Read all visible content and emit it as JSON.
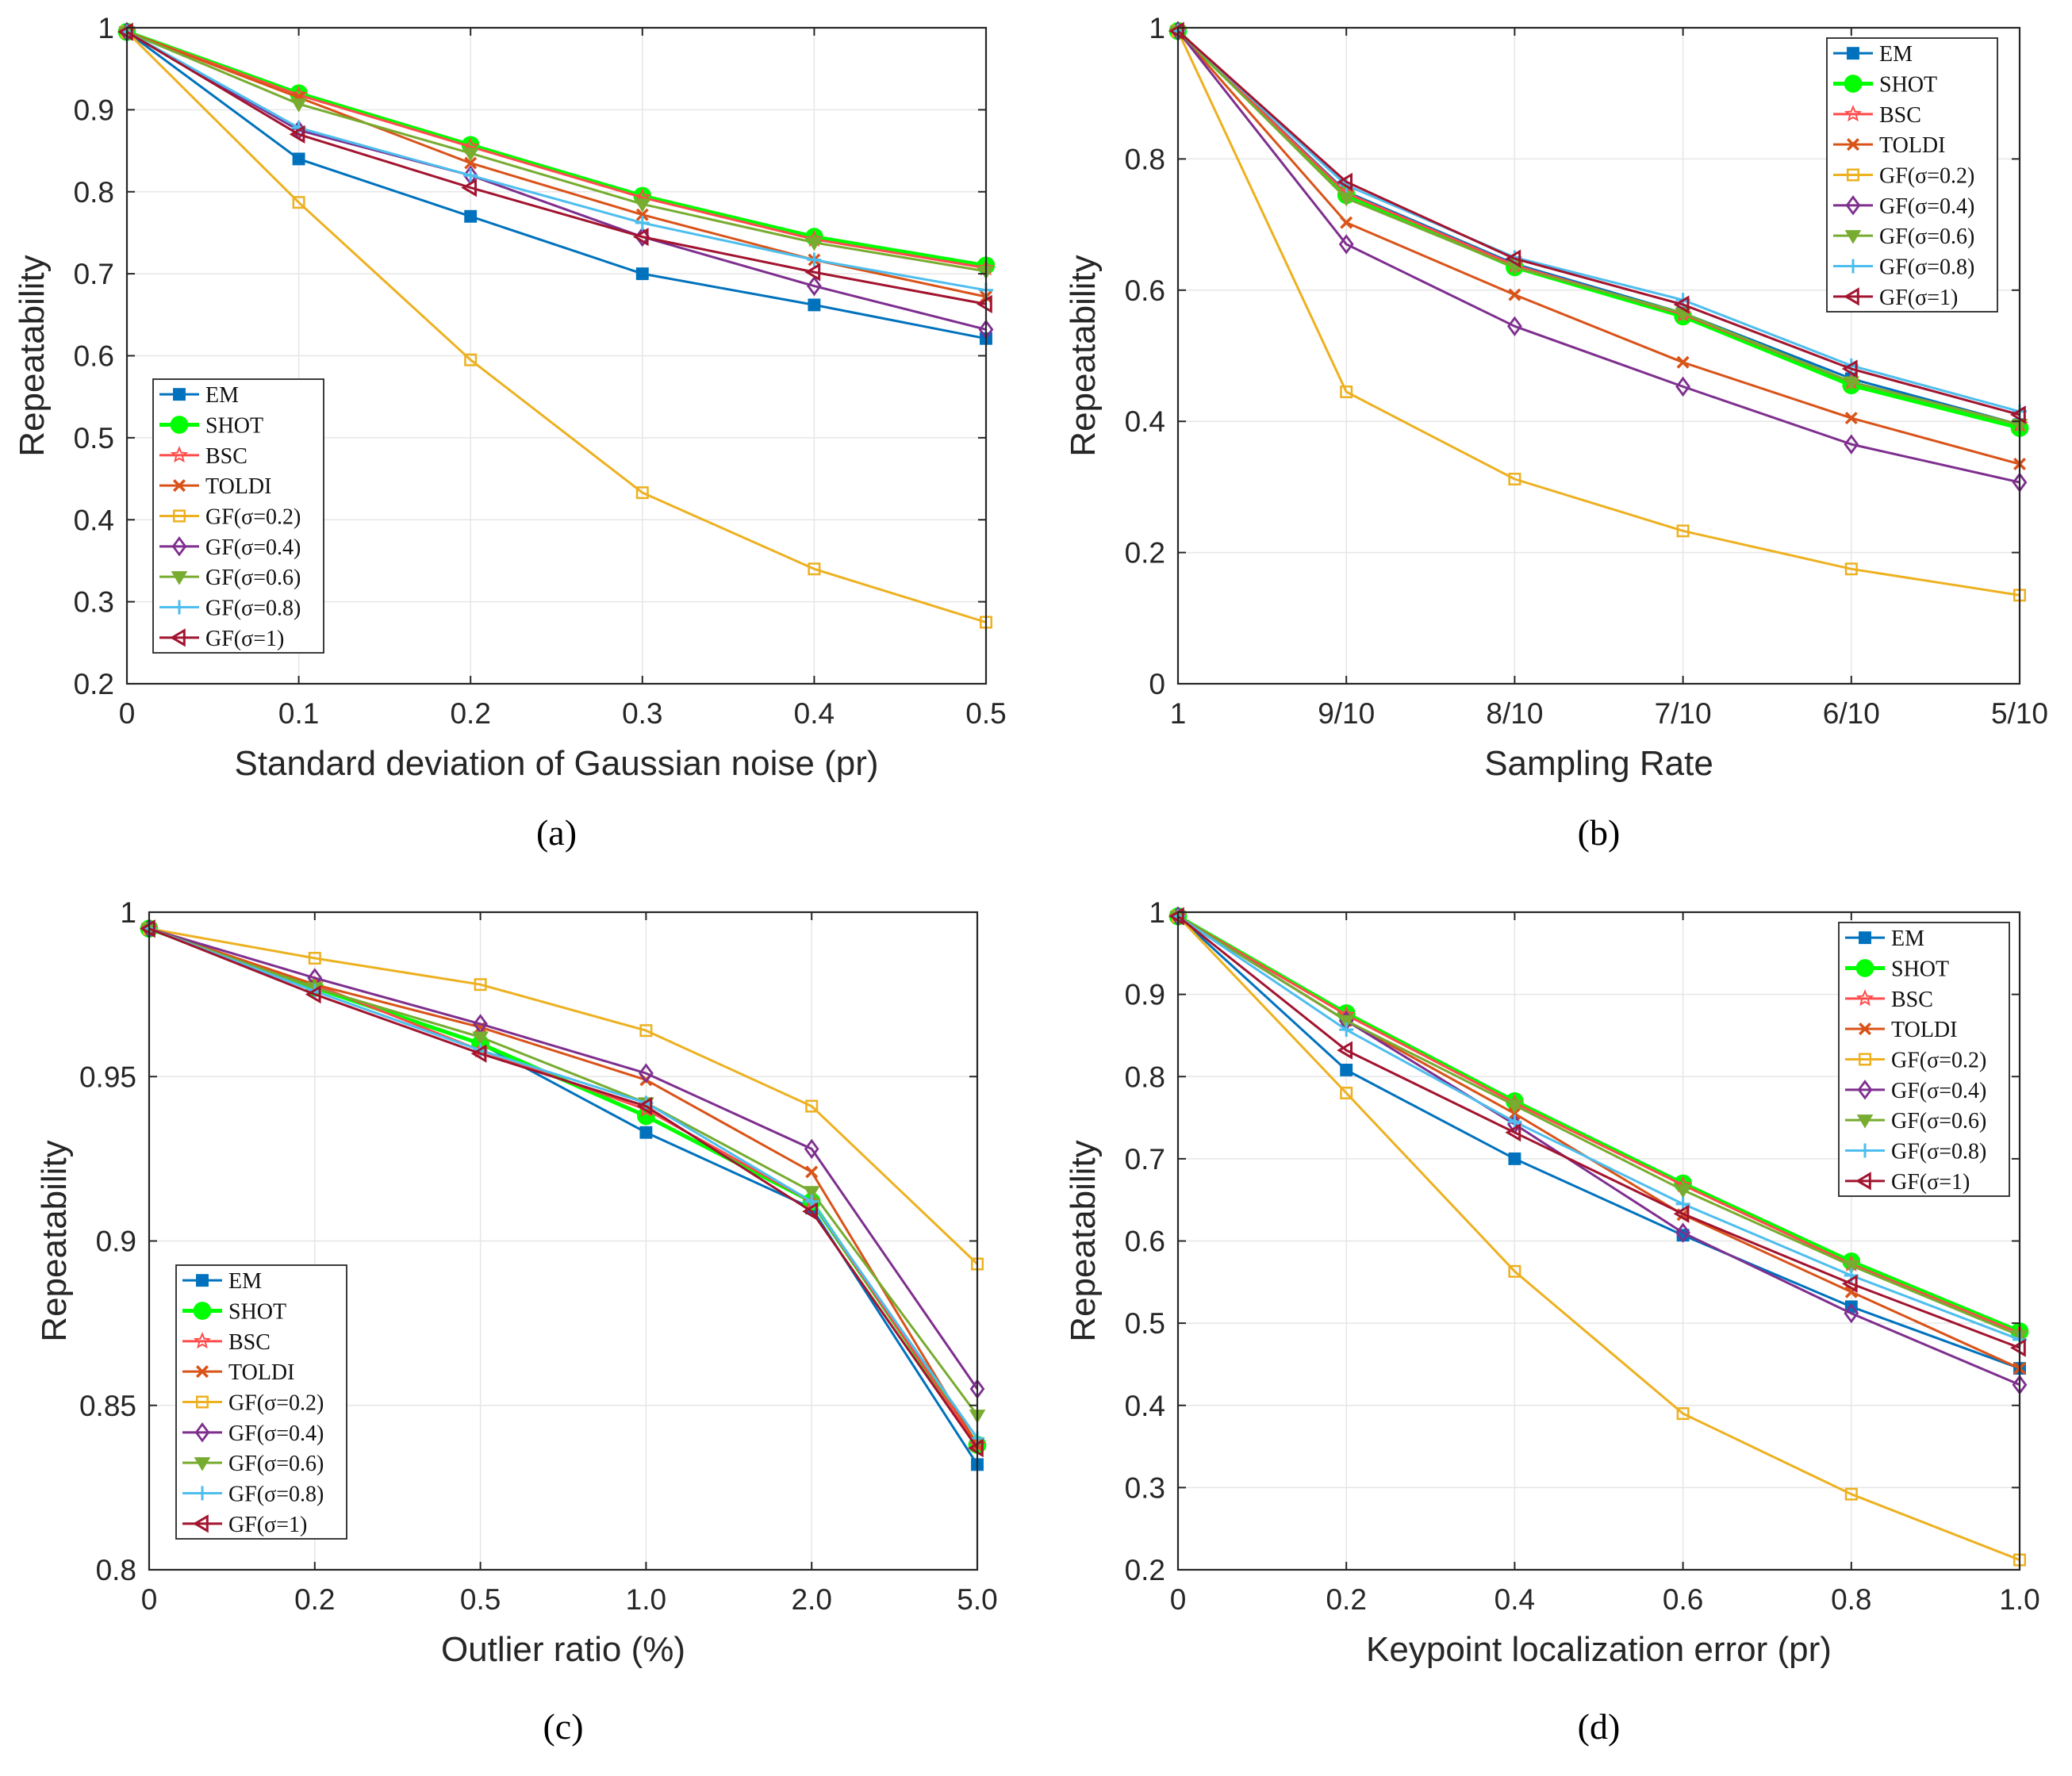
{
  "legend_labels": [
    "EM",
    "SHOT",
    "BSC",
    "TOLDI",
    "GF(σ=0.2)",
    "GF(σ=0.4)",
    "GF(σ=0.6)",
    "GF(σ=0.8)",
    "GF(σ=1)"
  ],
  "series_style": {
    "EM": {
      "color": "#0072BD",
      "marker": "square"
    },
    "SHOT": {
      "color": "#00FF00",
      "marker": "circle"
    },
    "BSC": {
      "color": "#FF4B4B",
      "marker": "star"
    },
    "TOLDI": {
      "color": "#D95319",
      "marker": "x"
    },
    "GF(σ=0.2)": {
      "color": "#EDB120",
      "marker": "square-open"
    },
    "GF(σ=0.4)": {
      "color": "#7E2F8E",
      "marker": "diamond"
    },
    "GF(σ=0.6)": {
      "color": "#77AC30",
      "marker": "triangle-down"
    },
    "GF(σ=0.8)": {
      "color": "#4DBEEE",
      "marker": "plus"
    },
    "GF(σ=1)": {
      "color": "#A2142F",
      "marker": "triangle-left"
    }
  },
  "chart_data": [
    {
      "type": "line",
      "caption": "(a)",
      "xlabel": "Standard deviation of Gaussian noise (pr)",
      "ylabel": "Repeatability",
      "categories": [
        "0",
        "0.1",
        "0.2",
        "0.3",
        "0.4",
        "0.5"
      ],
      "yticks": [
        "0.2",
        "0.3",
        "0.4",
        "0.5",
        "0.6",
        "0.7",
        "0.8",
        "0.9",
        "1"
      ],
      "ylim": [
        0.2,
        1.0
      ],
      "legend_position": "bottom-left",
      "series": [
        {
          "name": "EM",
          "values": [
            0.995,
            0.84,
            0.77,
            0.7,
            0.662,
            0.621
          ]
        },
        {
          "name": "SHOT",
          "values": [
            0.995,
            0.92,
            0.857,
            0.795,
            0.745,
            0.71
          ]
        },
        {
          "name": "BSC",
          "values": [
            0.995,
            0.918,
            0.855,
            0.793,
            0.742,
            0.707
          ]
        },
        {
          "name": "TOLDI",
          "values": [
            0.995,
            0.915,
            0.835,
            0.772,
            0.717,
            0.672
          ]
        },
        {
          "name": "GF(σ=0.2)",
          "values": [
            0.995,
            0.787,
            0.595,
            0.433,
            0.34,
            0.275
          ]
        },
        {
          "name": "GF(σ=0.4)",
          "values": [
            0.995,
            0.875,
            0.82,
            0.745,
            0.685,
            0.632
          ]
        },
        {
          "name": "GF(σ=0.6)",
          "values": [
            0.995,
            0.907,
            0.847,
            0.785,
            0.738,
            0.703
          ]
        },
        {
          "name": "GF(σ=0.8)",
          "values": [
            0.995,
            0.878,
            0.82,
            0.762,
            0.717,
            0.68
          ]
        },
        {
          "name": "GF(σ=1)",
          "values": [
            0.995,
            0.87,
            0.805,
            0.745,
            0.702,
            0.663
          ]
        }
      ]
    },
    {
      "type": "line",
      "caption": "(b)",
      "xlabel": "Sampling Rate",
      "ylabel": "Repeatability",
      "categories": [
        "1",
        "9/10",
        "8/10",
        "7/10",
        "6/10",
        "5/10"
      ],
      "yticks": [
        "0",
        "0.2",
        "0.4",
        "0.6",
        "0.8",
        "1"
      ],
      "ylim": [
        0,
        1.0
      ],
      "legend_position": "top-right",
      "series": [
        {
          "name": "EM",
          "values": [
            0.995,
            0.75,
            0.64,
            0.565,
            0.465,
            0.395
          ]
        },
        {
          "name": "SHOT",
          "values": [
            0.995,
            0.745,
            0.635,
            0.56,
            0.455,
            0.39
          ]
        },
        {
          "name": "BSC",
          "values": [
            0.995,
            0.748,
            0.638,
            0.563,
            0.46,
            0.395
          ]
        },
        {
          "name": "TOLDI",
          "values": [
            0.995,
            0.703,
            0.593,
            0.49,
            0.405,
            0.335
          ]
        },
        {
          "name": "GF(σ=0.2)",
          "values": [
            0.995,
            0.445,
            0.312,
            0.233,
            0.175,
            0.135
          ]
        },
        {
          "name": "GF(σ=0.4)",
          "values": [
            0.995,
            0.67,
            0.545,
            0.453,
            0.365,
            0.307
          ]
        },
        {
          "name": "GF(σ=0.6)",
          "values": [
            0.995,
            0.74,
            0.635,
            0.565,
            0.46,
            0.395
          ]
        },
        {
          "name": "GF(σ=0.8)",
          "values": [
            0.995,
            0.76,
            0.65,
            0.585,
            0.485,
            0.415
          ]
        },
        {
          "name": "GF(σ=1)",
          "values": [
            0.995,
            0.765,
            0.648,
            0.578,
            0.48,
            0.41
          ]
        }
      ]
    },
    {
      "type": "line",
      "caption": "(c)",
      "xlabel": "Outlier ratio (%)",
      "ylabel": "Repeatability",
      "categories": [
        "0",
        "0.2",
        "0.5",
        "1.0",
        "2.0",
        "5.0"
      ],
      "yticks": [
        "0.8",
        "0.85",
        "0.9",
        "0.95",
        "1"
      ],
      "ylim": [
        0.8,
        1.0
      ],
      "legend_position": "bottom-left",
      "series": [
        {
          "name": "EM",
          "values": [
            0.995,
            0.977,
            0.96,
            0.933,
            0.91,
            0.832
          ]
        },
        {
          "name": "SHOT",
          "values": [
            0.995,
            0.977,
            0.96,
            0.938,
            0.912,
            0.838
          ]
        },
        {
          "name": "BSC",
          "values": [
            0.995,
            0.978,
            0.958,
            0.94,
            0.912,
            0.838
          ]
        },
        {
          "name": "TOLDI",
          "values": [
            0.995,
            0.978,
            0.965,
            0.949,
            0.921,
            0.838
          ]
        },
        {
          "name": "GF(σ=0.2)",
          "values": [
            0.995,
            0.986,
            0.978,
            0.964,
            0.941,
            0.893
          ]
        },
        {
          "name": "GF(σ=0.4)",
          "values": [
            0.995,
            0.98,
            0.966,
            0.951,
            0.928,
            0.855
          ]
        },
        {
          "name": "GF(σ=0.6)",
          "values": [
            0.995,
            0.977,
            0.962,
            0.942,
            0.915,
            0.847
          ]
        },
        {
          "name": "GF(σ=0.8)",
          "values": [
            0.995,
            0.976,
            0.958,
            0.942,
            0.912,
            0.84
          ]
        },
        {
          "name": "GF(σ=1)",
          "values": [
            0.995,
            0.975,
            0.957,
            0.941,
            0.909,
            0.837
          ]
        }
      ]
    },
    {
      "type": "line",
      "caption": "(d)",
      "xlabel": "Keypoint localization error (pr)",
      "ylabel": "Repeatability",
      "categories": [
        "0",
        "0.2",
        "0.4",
        "0.6",
        "0.8",
        "1.0"
      ],
      "yticks": [
        "0.2",
        "0.3",
        "0.4",
        "0.5",
        "0.6",
        "0.7",
        "0.8",
        "0.9",
        "1"
      ],
      "ylim": [
        0.2,
        1.0
      ],
      "legend_position": "top-right",
      "series": [
        {
          "name": "EM",
          "values": [
            0.995,
            0.808,
            0.7,
            0.607,
            0.52,
            0.445
          ]
        },
        {
          "name": "SHOT",
          "values": [
            0.995,
            0.877,
            0.77,
            0.67,
            0.575,
            0.49
          ]
        },
        {
          "name": "BSC",
          "values": [
            0.995,
            0.875,
            0.768,
            0.668,
            0.572,
            0.488
          ]
        },
        {
          "name": "TOLDI",
          "values": [
            0.995,
            0.868,
            0.755,
            0.632,
            0.538,
            0.445
          ]
        },
        {
          "name": "GF(σ=0.2)",
          "values": [
            0.995,
            0.78,
            0.563,
            0.39,
            0.292,
            0.212
          ]
        },
        {
          "name": "GF(σ=0.4)",
          "values": [
            0.995,
            0.868,
            0.742,
            0.61,
            0.512,
            0.425
          ]
        },
        {
          "name": "GF(σ=0.6)",
          "values": [
            0.995,
            0.868,
            0.765,
            0.662,
            0.57,
            0.485
          ]
        },
        {
          "name": "GF(σ=0.8)",
          "values": [
            0.995,
            0.857,
            0.745,
            0.645,
            0.558,
            0.48
          ]
        },
        {
          "name": "GF(σ=1)",
          "values": [
            0.995,
            0.832,
            0.732,
            0.633,
            0.548,
            0.47
          ]
        }
      ]
    }
  ]
}
